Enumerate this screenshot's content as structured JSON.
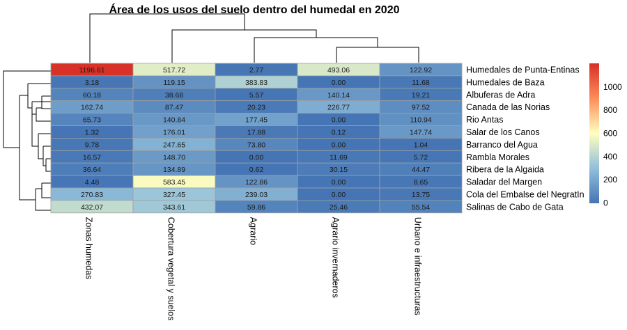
{
  "chart_data": {
    "type": "heatmap",
    "title": "Área de los usos del suelo dentro del humedal en 2020",
    "columns": [
      "Zonas humedas",
      "Cobertura vegetal y suelos",
      "Agrario",
      "Agrario invernaderos",
      "Urbano e infraestructuras"
    ],
    "rows": [
      "Humedales de Punta-Entinas",
      "Humedales de Baza",
      "Albuferas de Adra",
      "Canada de las Norias",
      "Rio Antas",
      "Salar de los Canos",
      "Barranco del Agua",
      "Rambla Morales",
      "Ribera de la Algaida",
      "Saladar del Margen",
      "Cola del Embalse del NegratIn",
      "Salinas de Cabo de Gata"
    ],
    "values": [
      [
        1196.61,
        517.72,
        2.77,
        493.06,
        122.92
      ],
      [
        3.18,
        119.15,
        383.83,
        0.0,
        11.68
      ],
      [
        60.18,
        38.68,
        5.57,
        140.14,
        19.21
      ],
      [
        162.74,
        87.47,
        20.23,
        226.77,
        97.52
      ],
      [
        65.73,
        140.84,
        177.45,
        0.0,
        110.94
      ],
      [
        1.32,
        176.01,
        17.88,
        0.12,
        147.74
      ],
      [
        9.78,
        247.65,
        73.8,
        0.0,
        1.04
      ],
      [
        16.57,
        148.7,
        0.0,
        11.69,
        5.72
      ],
      [
        36.64,
        134.89,
        0.62,
        30.15,
        44.47
      ],
      [
        4.48,
        583.45,
        122.86,
        0.0,
        8.65
      ],
      [
        270.83,
        327.45,
        239.03,
        0.0,
        13.75
      ],
      [
        432.07,
        343.61,
        59.86,
        25.46,
        55.54
      ]
    ],
    "display_values": [
      [
        "1196.61",
        "517.72",
        "2.77",
        "493.06",
        "122.92"
      ],
      [
        "3.18",
        "119.15",
        "383.83",
        "0.00",
        "11.68"
      ],
      [
        "60.18",
        "38.68",
        "5.57",
        "140.14",
        "19.21"
      ],
      [
        "162.74",
        "87.47",
        "20.23",
        "226.77",
        "97.52"
      ],
      [
        "65.73",
        "140.84",
        "177.45",
        "0.00",
        "110.94"
      ],
      [
        "1.32",
        "176.01",
        "17.88",
        "0.12",
        "147.74"
      ],
      [
        "9.78",
        "247.65",
        "73.80",
        "0.00",
        "1.04"
      ],
      [
        "16.57",
        "148.70",
        "0.00",
        "11.69",
        "5.72"
      ],
      [
        "36.64",
        "134.89",
        "0.62",
        "30.15",
        "44.47"
      ],
      [
        "4.48",
        "583.45",
        "122.86",
        "0.00",
        "8.65"
      ],
      [
        "270.83",
        "327.45",
        "239.03",
        "0.00",
        "13.75"
      ],
      [
        "432.07",
        "343.61",
        "59.86",
        "25.46",
        "55.54"
      ]
    ],
    "color_range": [
      0,
      1200
    ],
    "colors": [
      "#4575b4",
      "#91bfdb",
      "#ffffbf",
      "#fc8d59",
      "#d73027"
    ],
    "legend_ticks": [
      0,
      200,
      400,
      600,
      800,
      1000
    ],
    "legend_placement": "right",
    "row_dendrogram": true,
    "column_dendrogram": true
  }
}
